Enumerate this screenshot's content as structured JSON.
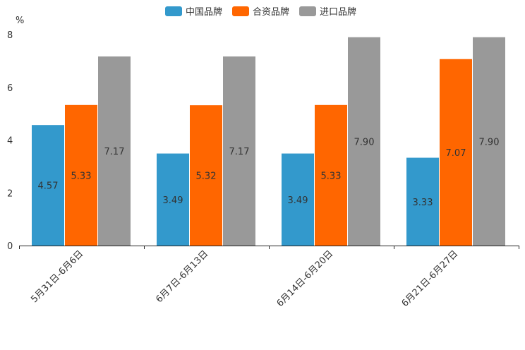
{
  "chart_data": {
    "type": "bar",
    "title": "",
    "xlabel": "",
    "ylabel": "%",
    "ylim": [
      0,
      8
    ],
    "yticks": [
      0,
      2,
      4,
      6,
      8
    ],
    "grid": false,
    "legend_position": "top-center",
    "categories": [
      "5月31日-6月6日",
      "6月7日-6月13日",
      "6月14日-6月20日",
      "6月21日-6月27日"
    ],
    "series": [
      {
        "name": "中国品牌",
        "color": "#3399cc",
        "values": [
          4.57,
          3.49,
          3.49,
          3.33
        ],
        "labels": [
          "4.57",
          "3.49",
          "3.49",
          "3.33"
        ]
      },
      {
        "name": "合资品牌",
        "color": "#ff6600",
        "values": [
          5.33,
          5.32,
          5.33,
          7.07
        ],
        "labels": [
          "5.33",
          "5.32",
          "5.33",
          "7.07"
        ]
      },
      {
        "name": "进口品牌",
        "color": "#999999",
        "values": [
          7.17,
          7.17,
          7.9,
          7.9
        ],
        "labels": [
          "7.17",
          "7.17",
          "7.90",
          "7.90"
        ]
      }
    ]
  }
}
